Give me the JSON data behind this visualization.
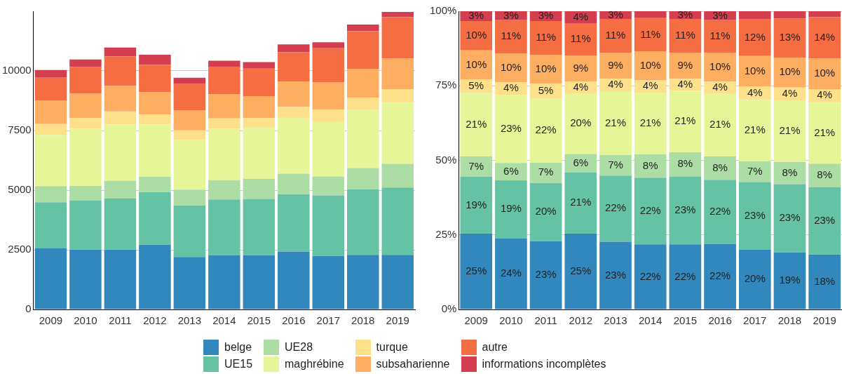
{
  "chart_data": [
    {
      "type": "bar",
      "stacked": true,
      "categories": [
        "2009",
        "2010",
        "2011",
        "2012",
        "2013",
        "2014",
        "2015",
        "2016",
        "2017",
        "2018",
        "2019"
      ],
      "ylim": [
        0,
        12500
      ],
      "yticks": [
        0,
        2500,
        5000,
        7500,
        10000
      ],
      "grid": "y",
      "legend": "bottom",
      "series": [
        {
          "name": "belge",
          "color": "#3288bd",
          "values": [
            2570,
            2510,
            2510,
            2710,
            2200,
            2270,
            2270,
            2430,
            2240,
            2290,
            2290
          ]
        },
        {
          "name": "UE15",
          "color": "#66c2a5",
          "values": [
            1920,
            2060,
            2140,
            2200,
            2150,
            2340,
            2360,
            2400,
            2540,
            2740,
            2820
          ]
        },
        {
          "name": "UE28",
          "color": "#abdda4",
          "values": [
            680,
            610,
            750,
            650,
            670,
            810,
            840,
            860,
            790,
            900,
            990
          ]
        },
        {
          "name": "maghrébine",
          "color": "#e6f598",
          "values": [
            2140,
            2390,
            2360,
            2190,
            2080,
            2160,
            2140,
            2340,
            2310,
            2440,
            2570
          ]
        },
        {
          "name": "turque",
          "color": "#fee08b",
          "values": [
            460,
            460,
            540,
            430,
            410,
            430,
            420,
            460,
            500,
            510,
            560
          ]
        },
        {
          "name": "subsaharienne",
          "color": "#fdae61",
          "values": [
            980,
            1020,
            1070,
            930,
            840,
            1020,
            900,
            1070,
            1150,
            1210,
            1290
          ]
        },
        {
          "name": "autre",
          "color": "#f46d43",
          "values": [
            960,
            1120,
            1240,
            1150,
            1100,
            1150,
            1190,
            1220,
            1420,
            1570,
            1730
          ]
        },
        {
          "name": "informations incomplètes",
          "color": "#d53e4f",
          "values": [
            330,
            310,
            370,
            420,
            260,
            250,
            250,
            330,
            250,
            280,
            220
          ]
        }
      ]
    },
    {
      "type": "bar",
      "stacked": true,
      "categories": [
        "2009",
        "2010",
        "2011",
        "2012",
        "2013",
        "2014",
        "2015",
        "2016",
        "2017",
        "2018",
        "2019"
      ],
      "ylim": [
        0,
        100
      ],
      "yticks": [
        {
          "value": 0,
          "label": "0%"
        },
        {
          "value": 25,
          "label": "25%"
        },
        {
          "value": 50,
          "label": "50%"
        },
        {
          "value": 75,
          "label": "75%"
        },
        {
          "value": 100,
          "label": "100%"
        }
      ],
      "grid": "y",
      "series": [
        {
          "color": "#3288bd",
          "values": [
            25.4,
            23.9,
            22.9,
            25.4,
            22.7,
            21.8,
            21.8,
            21.9,
            20.0,
            19.1,
            18.4
          ],
          "value_labels": [
            "25%",
            "24%",
            "23%",
            "25%",
            "23%",
            "22%",
            "22%",
            "22%",
            "20%",
            "19%",
            "18%"
          ]
        },
        {
          "color": "#66c2a5",
          "values": [
            19.1,
            19.4,
            19.5,
            20.6,
            22.2,
            22.4,
            22.8,
            21.6,
            22.7,
            22.9,
            22.6
          ],
          "value_labels": [
            "19%",
            "19%",
            "20%",
            "21%",
            "22%",
            "22%",
            "23%",
            "22%",
            "23%",
            "23%",
            "23%"
          ]
        },
        {
          "color": "#abdda4",
          "values": [
            6.8,
            5.8,
            6.8,
            6.1,
            6.9,
            7.8,
            8.1,
            7.8,
            7.0,
            7.5,
            7.9
          ],
          "value_labels": [
            "7%",
            "6%",
            "7%",
            "6%",
            "7%",
            "8%",
            "8%",
            "8%",
            "7%",
            "8%",
            "8%"
          ]
        },
        {
          "color": "#e6f598",
          "values": [
            21.3,
            22.8,
            21.5,
            20.4,
            21.4,
            20.7,
            20.6,
            21.0,
            20.6,
            20.6,
            20.6
          ],
          "value_labels": [
            "21%",
            "23%",
            "22%",
            "20%",
            "21%",
            "21%",
            "21%",
            "21%",
            "21%",
            "21%",
            "21%"
          ]
        },
        {
          "color": "#fee08b",
          "values": [
            4.5,
            4.3,
            5.0,
            4.0,
            4.2,
            4.1,
            4.0,
            4.1,
            4.4,
            4.3,
            4.4
          ],
          "value_labels": [
            "5%",
            "4%",
            "5%",
            "4%",
            "4%",
            "4%",
            "4%",
            "4%",
            "4%",
            "4%",
            "4%"
          ]
        },
        {
          "color": "#fdae61",
          "values": [
            9.8,
            9.7,
            9.7,
            8.7,
            8.7,
            9.8,
            8.7,
            9.6,
            10.3,
            10.1,
            10.3
          ],
          "value_labels": [
            "10%",
            "10%",
            "10%",
            "9%",
            "9%",
            "10%",
            "9%",
            "10%",
            "10%",
            "10%",
            "10%"
          ]
        },
        {
          "color": "#f46d43",
          "values": [
            9.8,
            11.1,
            11.3,
            10.8,
            11.3,
            11.1,
            11.4,
            11.0,
            12.4,
            13.1,
            13.8
          ],
          "value_labels": [
            "10%",
            "11%",
            "11%",
            "11%",
            "11%",
            "11%",
            "11%",
            "11%",
            "12%",
            "13%",
            "14%"
          ]
        },
        {
          "color": "#d53e4f",
          "values": [
            3.3,
            3.0,
            3.3,
            4.0,
            2.6,
            2.3,
            2.6,
            3.0,
            2.6,
            2.4,
            2.0
          ],
          "value_labels": [
            "3%",
            "3%",
            "3%",
            "4%",
            "3%",
            null,
            "3%",
            "3%",
            null,
            null,
            null
          ]
        }
      ]
    }
  ]
}
